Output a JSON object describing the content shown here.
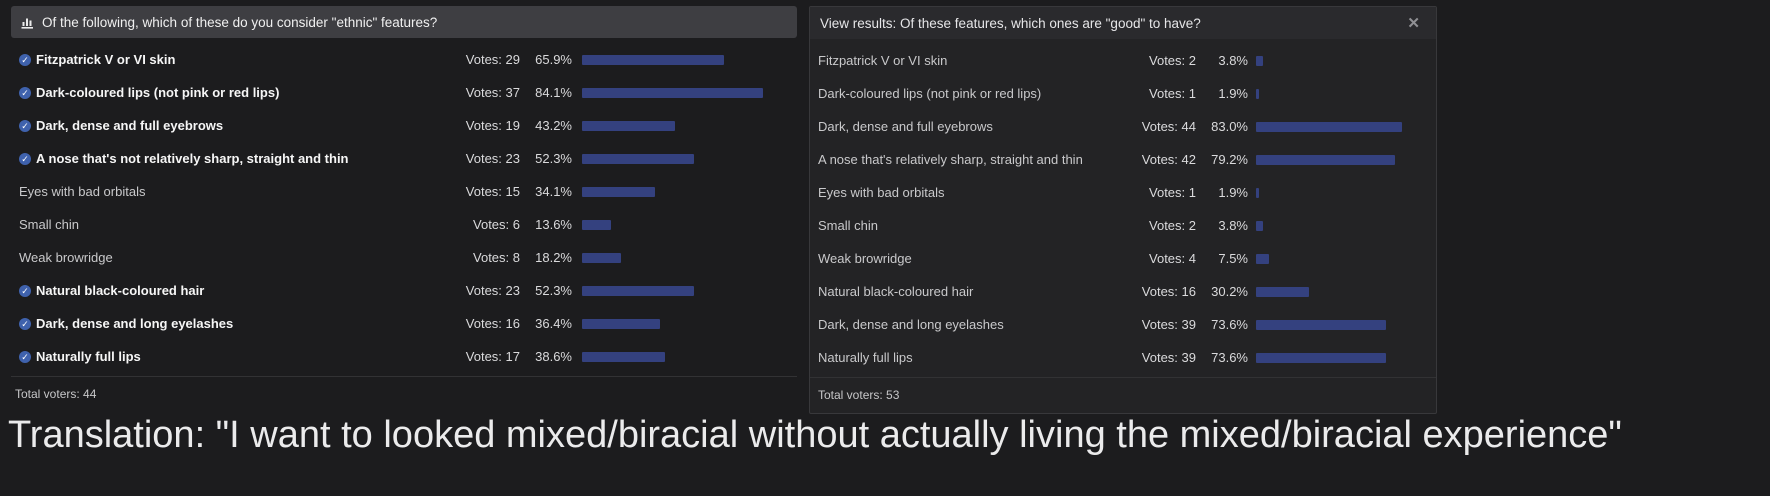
{
  "page": {
    "caption": "Translation: \"I want to looked mixed/biracial without actually living the mixed/biracial experience\""
  },
  "colors": {
    "page_background": "#1c1c1e",
    "left_header_background": "#3e3e42",
    "right_panel_background": "#232325",
    "right_header_background": "#2a2a2d",
    "bar_fill": "#34417f",
    "voted_check_blue": "#3f62ad",
    "caption_text": "#ebebec"
  },
  "left_poll": {
    "header_icon": "bar-chart-icon",
    "title": "Of the following, which of these do you consider \"ethnic\" features?",
    "options": [
      {
        "label": "Fitzpatrick V or VI skin",
        "votes_label": "Votes: 29",
        "pct_label": "65.9%",
        "pct": 65.9,
        "voted": true
      },
      {
        "label": "Dark-coloured lips (not pink or red lips)",
        "votes_label": "Votes: 37",
        "pct_label": "84.1%",
        "pct": 84.1,
        "voted": true
      },
      {
        "label": "Dark, dense and full eyebrows",
        "votes_label": "Votes: 19",
        "pct_label": "43.2%",
        "pct": 43.2,
        "voted": true
      },
      {
        "label": "A nose that's not relatively sharp, straight and thin",
        "votes_label": "Votes: 23",
        "pct_label": "52.3%",
        "pct": 52.3,
        "voted": true
      },
      {
        "label": "Eyes with bad orbitals",
        "votes_label": "Votes: 15",
        "pct_label": "34.1%",
        "pct": 34.1,
        "voted": false
      },
      {
        "label": "Small chin",
        "votes_label": "Votes: 6",
        "pct_label": "13.6%",
        "pct": 13.6,
        "voted": false
      },
      {
        "label": "Weak browridge",
        "votes_label": "Votes: 8",
        "pct_label": "18.2%",
        "pct": 18.2,
        "voted": false
      },
      {
        "label": "Natural black-coloured hair",
        "votes_label": "Votes: 23",
        "pct_label": "52.3%",
        "pct": 52.3,
        "voted": true
      },
      {
        "label": "Dark, dense and long eyelashes",
        "votes_label": "Votes: 16",
        "pct_label": "36.4%",
        "pct": 36.4,
        "voted": true
      },
      {
        "label": "Naturally full lips",
        "votes_label": "Votes: 17",
        "pct_label": "38.6%",
        "pct": 38.6,
        "voted": true
      }
    ],
    "total_voters": "Total voters: 44"
  },
  "right_poll": {
    "title": "View results: Of these features, which ones are \"good\" to have?",
    "close_glyph": "✕",
    "options": [
      {
        "label": "Fitzpatrick V or VI skin",
        "votes_label": "Votes: 2",
        "pct_label": "3.8%",
        "pct": 3.8,
        "voted": false
      },
      {
        "label": "Dark-coloured lips (not pink or red lips)",
        "votes_label": "Votes: 1",
        "pct_label": "1.9%",
        "pct": 1.9,
        "voted": false
      },
      {
        "label": "Dark, dense and full eyebrows",
        "votes_label": "Votes: 44",
        "pct_label": "83.0%",
        "pct": 83.0,
        "voted": false
      },
      {
        "label": "A nose that's relatively sharp, straight and thin",
        "votes_label": "Votes: 42",
        "pct_label": "79.2%",
        "pct": 79.2,
        "voted": false
      },
      {
        "label": "Eyes with bad orbitals",
        "votes_label": "Votes: 1",
        "pct_label": "1.9%",
        "pct": 1.9,
        "voted": false
      },
      {
        "label": "Small chin",
        "votes_label": "Votes: 2",
        "pct_label": "3.8%",
        "pct": 3.8,
        "voted": false
      },
      {
        "label": "Weak browridge",
        "votes_label": "Votes: 4",
        "pct_label": "7.5%",
        "pct": 7.5,
        "voted": false
      },
      {
        "label": "Natural black-coloured hair",
        "votes_label": "Votes: 16",
        "pct_label": "30.2%",
        "pct": 30.2,
        "voted": false
      },
      {
        "label": "Dark, dense and long eyelashes",
        "votes_label": "Votes: 39",
        "pct_label": "73.6%",
        "pct": 73.6,
        "voted": false
      },
      {
        "label": "Naturally full lips",
        "votes_label": "Votes: 39",
        "pct_label": "73.6%",
        "pct": 73.6,
        "voted": false
      }
    ],
    "total_voters": "Total voters: 53"
  }
}
